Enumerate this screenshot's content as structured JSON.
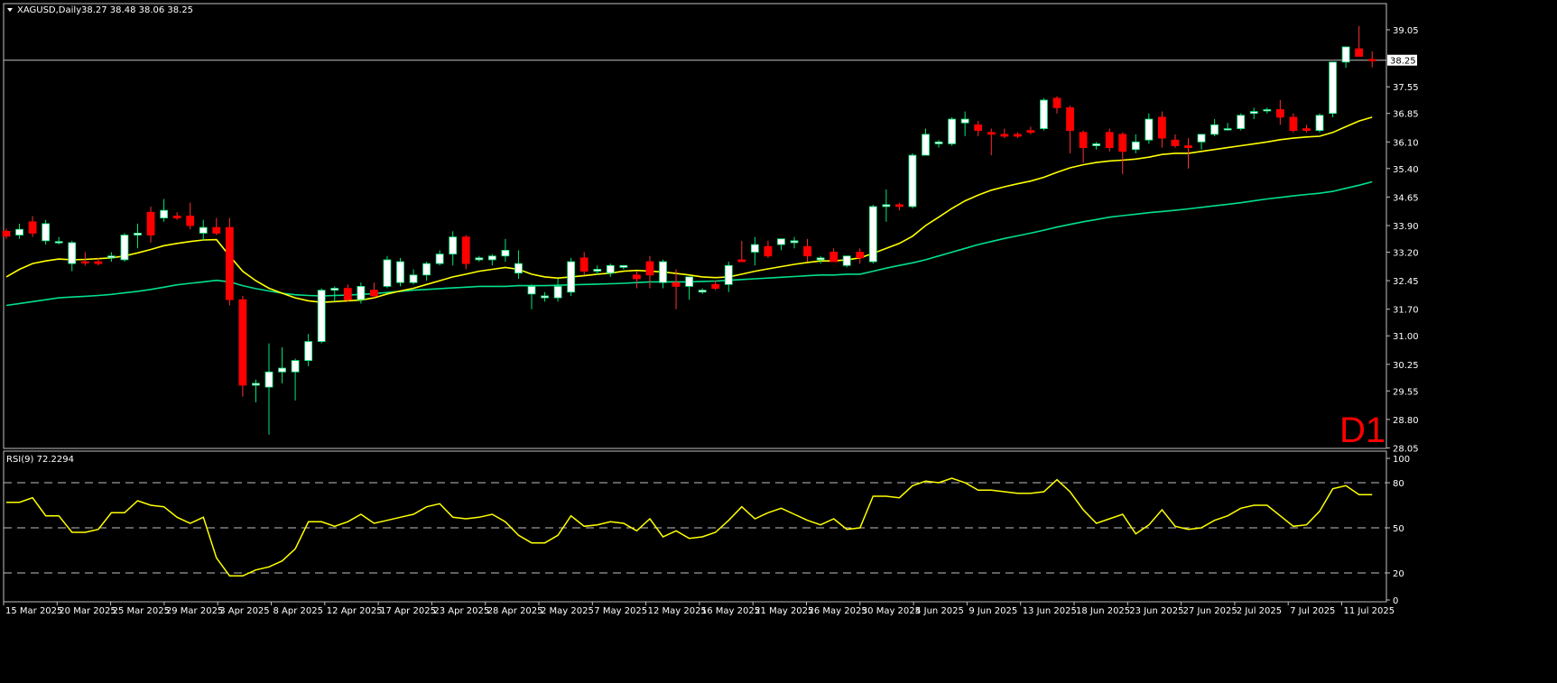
{
  "header": {
    "symbol": "XAGUSD,Daily",
    "ohlc": "38.27 38.48 38.06 38.25"
  },
  "timeframe_label": "D1",
  "rsi_header": "RSI(9) 72.2294",
  "current_price_label": "38.25",
  "colors": {
    "bull": "#ffffff",
    "bear": "#ff0000",
    "ma_fast": "#ffff00",
    "ma_slow": "#00e08c",
    "rsi": "#ffff00",
    "grid": "#c0c0c0"
  },
  "chart_data": [
    {
      "type": "candlestick",
      "symbol": "XAGUSD",
      "ylim": [
        28.0,
        39.5
      ],
      "y_ticks": [
        "39.05",
        "38.25",
        "37.55",
        "36.85",
        "36.10",
        "35.40",
        "34.65",
        "33.90",
        "33.20",
        "32.45",
        "31.70",
        "31.00",
        "30.25",
        "29.55",
        "28.80",
        "28.05"
      ],
      "x_tick_labels": [
        "15 Mar 2025",
        "20 Mar 2025",
        "25 Mar 2025",
        "29 Mar 2025",
        "3 Apr 2025",
        "8 Apr 2025",
        "12 Apr 2025",
        "17 Apr 2025",
        "23 Apr 2025",
        "28 Apr 2025",
        "2 May 2025",
        "7 May 2025",
        "12 May 2025",
        "16 May 2025",
        "21 May 2025",
        "26 May 2025",
        "30 May 2025",
        "4 Jun 2025",
        "9 Jun 2025",
        "13 Jun 2025",
        "18 Jun 2025",
        "23 Jun 2025",
        "27 Jun 2025",
        "2 Jul 2025",
        "7 Jul 2025",
        "11 Jul 2025"
      ],
      "candles": [
        [
          33.75,
          33.82,
          33.55,
          33.62
        ],
        [
          33.65,
          33.95,
          33.55,
          33.8
        ],
        [
          34.0,
          34.15,
          33.6,
          33.7
        ],
        [
          33.5,
          34.05,
          33.4,
          33.95
        ],
        [
          33.45,
          33.6,
          33.4,
          33.48
        ],
        [
          32.9,
          33.5,
          32.7,
          33.45
        ],
        [
          32.95,
          33.2,
          32.85,
          32.92
        ],
        [
          32.95,
          33.05,
          32.85,
          32.9
        ],
        [
          33.05,
          33.2,
          32.95,
          33.1
        ],
        [
          33.0,
          33.7,
          32.95,
          33.65
        ],
        [
          33.65,
          33.95,
          33.3,
          33.7
        ],
        [
          34.25,
          34.4,
          33.45,
          33.65
        ],
        [
          34.1,
          34.6,
          34.0,
          34.3
        ],
        [
          34.15,
          34.25,
          34.05,
          34.1
        ],
        [
          34.15,
          34.5,
          33.8,
          33.9
        ],
        [
          33.7,
          34.05,
          33.5,
          33.85
        ],
        [
          33.85,
          34.1,
          33.65,
          33.7
        ],
        [
          33.85,
          34.1,
          31.8,
          31.95
        ],
        [
          31.95,
          32.05,
          29.4,
          29.7
        ],
        [
          29.7,
          29.85,
          29.25,
          29.75
        ],
        [
          29.65,
          30.8,
          28.4,
          30.05
        ],
        [
          30.05,
          30.7,
          29.75,
          30.15
        ],
        [
          30.05,
          30.4,
          29.3,
          30.35
        ],
        [
          30.35,
          31.05,
          30.2,
          30.85
        ],
        [
          30.85,
          32.25,
          30.8,
          32.2
        ],
        [
          32.2,
          32.3,
          31.9,
          32.25
        ],
        [
          32.25,
          32.35,
          31.9,
          31.95
        ],
        [
          31.95,
          32.4,
          31.85,
          32.3
        ],
        [
          32.2,
          32.4,
          32.0,
          32.05
        ],
        [
          32.3,
          33.1,
          32.25,
          33.0
        ],
        [
          32.4,
          33.05,
          32.3,
          32.95
        ],
        [
          32.4,
          32.75,
          32.35,
          32.6
        ],
        [
          32.6,
          32.95,
          32.45,
          32.9
        ],
        [
          32.9,
          33.25,
          32.85,
          33.15
        ],
        [
          33.15,
          33.75,
          32.85,
          33.6
        ],
        [
          33.6,
          33.65,
          32.75,
          32.9
        ],
        [
          33.0,
          33.1,
          32.95,
          33.05
        ],
        [
          33.0,
          33.15,
          32.85,
          33.1
        ],
        [
          33.1,
          33.55,
          32.95,
          33.25
        ],
        [
          32.65,
          33.25,
          32.5,
          32.9
        ],
        [
          32.1,
          32.35,
          31.7,
          32.3
        ],
        [
          32.0,
          32.15,
          31.9,
          32.05
        ],
        [
          32.0,
          32.5,
          31.9,
          32.3
        ],
        [
          32.15,
          33.05,
          32.05,
          32.95
        ],
        [
          33.05,
          33.2,
          32.6,
          32.7
        ],
        [
          32.7,
          32.85,
          32.6,
          32.75
        ],
        [
          32.65,
          32.9,
          32.55,
          32.85
        ],
        [
          32.8,
          32.85,
          32.75,
          32.85
        ],
        [
          32.6,
          32.7,
          32.25,
          32.5
        ],
        [
          32.95,
          33.1,
          32.25,
          32.6
        ],
        [
          32.4,
          33.0,
          32.25,
          32.95
        ],
        [
          32.4,
          32.75,
          31.7,
          32.3
        ],
        [
          32.3,
          32.55,
          31.95,
          32.55
        ],
        [
          32.15,
          32.25,
          32.1,
          32.2
        ],
        [
          32.35,
          32.45,
          32.2,
          32.25
        ],
        [
          32.35,
          32.95,
          32.15,
          32.85
        ],
        [
          33.0,
          33.5,
          32.95,
          32.95
        ],
        [
          33.2,
          33.6,
          32.85,
          33.4
        ],
        [
          33.35,
          33.5,
          33.05,
          33.1
        ],
        [
          33.4,
          33.55,
          33.25,
          33.55
        ],
        [
          33.45,
          33.6,
          33.3,
          33.5
        ],
        [
          33.35,
          33.55,
          32.95,
          33.1
        ],
        [
          33.0,
          33.1,
          32.9,
          33.05
        ],
        [
          33.2,
          33.3,
          32.95,
          32.95
        ],
        [
          32.85,
          33.05,
          32.8,
          33.1
        ],
        [
          33.2,
          33.3,
          32.9,
          33.05
        ],
        [
          32.95,
          34.45,
          32.9,
          34.4
        ],
        [
          34.4,
          34.85,
          34.0,
          34.45
        ],
        [
          34.45,
          34.5,
          34.3,
          34.4
        ],
        [
          34.4,
          35.8,
          34.35,
          35.75
        ],
        [
          35.75,
          36.45,
          35.75,
          36.3
        ],
        [
          36.05,
          36.15,
          35.95,
          36.1
        ],
        [
          36.05,
          36.75,
          36.0,
          36.7
        ],
        [
          36.6,
          36.9,
          36.25,
          36.7
        ],
        [
          36.55,
          36.65,
          36.25,
          36.4
        ],
        [
          36.35,
          36.45,
          35.75,
          36.3
        ],
        [
          36.3,
          36.45,
          36.2,
          36.25
        ],
        [
          36.3,
          36.35,
          36.2,
          36.25
        ],
        [
          36.4,
          36.5,
          36.3,
          36.35
        ],
        [
          36.45,
          37.25,
          36.4,
          37.2
        ],
        [
          37.25,
          37.3,
          36.85,
          37.0
        ],
        [
          37.0,
          37.05,
          35.8,
          36.4
        ],
        [
          36.35,
          36.4,
          35.55,
          35.95
        ],
        [
          36.0,
          36.1,
          35.9,
          36.05
        ],
        [
          36.35,
          36.45,
          35.85,
          35.95
        ],
        [
          36.3,
          36.35,
          35.25,
          35.85
        ],
        [
          35.9,
          36.3,
          35.8,
          36.1
        ],
        [
          36.15,
          36.85,
          36.05,
          36.7
        ],
        [
          36.75,
          36.9,
          35.95,
          36.2
        ],
        [
          36.15,
          36.3,
          35.95,
          36.0
        ],
        [
          36.0,
          36.2,
          35.4,
          35.95
        ],
        [
          36.1,
          36.3,
          35.9,
          36.3
        ],
        [
          36.3,
          36.7,
          36.25,
          36.55
        ],
        [
          36.45,
          36.6,
          36.4,
          36.45
        ],
        [
          36.45,
          36.85,
          36.4,
          36.8
        ],
        [
          36.85,
          37.0,
          36.7,
          36.9
        ],
        [
          36.95,
          37.0,
          36.85,
          36.95
        ],
        [
          36.95,
          37.2,
          36.55,
          36.75
        ],
        [
          36.75,
          36.85,
          36.35,
          36.4
        ],
        [
          36.45,
          36.55,
          36.35,
          36.4
        ],
        [
          36.4,
          36.85,
          36.35,
          36.8
        ],
        [
          36.85,
          38.2,
          36.75,
          38.2
        ],
        [
          38.2,
          38.6,
          38.05,
          38.6
        ],
        [
          38.55,
          39.15,
          38.35,
          38.35
        ],
        [
          38.27,
          38.48,
          38.06,
          38.25
        ]
      ],
      "ma_fast": [
        32.55,
        32.75,
        32.9,
        32.97,
        33.02,
        33.0,
        33.01,
        33.03,
        33.05,
        33.1,
        33.18,
        33.27,
        33.37,
        33.43,
        33.48,
        33.52,
        33.53,
        33.1,
        32.7,
        32.45,
        32.25,
        32.12,
        32.0,
        31.92,
        31.88,
        31.9,
        31.92,
        31.94,
        32.0,
        32.1,
        32.18,
        32.25,
        32.35,
        32.45,
        32.55,
        32.62,
        32.7,
        32.75,
        32.8,
        32.75,
        32.62,
        32.55,
        32.52,
        32.55,
        32.58,
        32.62,
        32.65,
        32.7,
        32.72,
        32.7,
        32.68,
        32.64,
        32.6,
        32.55,
        32.53,
        32.55,
        32.62,
        32.7,
        32.76,
        32.82,
        32.88,
        32.93,
        32.97,
        32.97,
        33.0,
        33.05,
        33.17,
        33.3,
        33.43,
        33.62,
        33.9,
        34.12,
        34.35,
        34.55,
        34.7,
        34.83,
        34.92,
        35.0,
        35.07,
        35.17,
        35.3,
        35.42,
        35.5,
        35.56,
        35.6,
        35.62,
        35.65,
        35.7,
        35.77,
        35.8,
        35.8,
        35.85,
        35.9,
        35.95,
        36.0,
        36.05,
        36.1,
        36.16,
        36.2,
        36.23,
        36.25,
        36.35,
        36.5,
        36.65,
        36.75
      ],
      "ma_slow": [
        31.8,
        31.85,
        31.9,
        31.95,
        32.0,
        32.02,
        32.04,
        32.06,
        32.09,
        32.13,
        32.17,
        32.22,
        32.28,
        32.34,
        32.38,
        32.42,
        32.46,
        32.42,
        32.32,
        32.24,
        32.18,
        32.12,
        32.08,
        32.06,
        32.05,
        32.06,
        32.07,
        32.09,
        32.11,
        32.14,
        32.17,
        32.2,
        32.22,
        32.24,
        32.26,
        32.28,
        32.3,
        32.3,
        32.3,
        32.32,
        32.32,
        32.32,
        32.33,
        32.34,
        32.35,
        32.36,
        32.37,
        32.38,
        32.4,
        32.42,
        32.42,
        32.42,
        32.42,
        32.43,
        32.44,
        32.46,
        32.48,
        32.5,
        32.52,
        32.54,
        32.56,
        32.58,
        32.6,
        32.6,
        32.62,
        32.62,
        32.7,
        32.78,
        32.85,
        32.92,
        33.0,
        33.1,
        33.2,
        33.3,
        33.4,
        33.48,
        33.56,
        33.63,
        33.7,
        33.78,
        33.86,
        33.93,
        34.0,
        34.06,
        34.12,
        34.16,
        34.2,
        34.24,
        34.27,
        34.3,
        34.34,
        34.38,
        34.42,
        34.46,
        34.5,
        34.55,
        34.6,
        34.64,
        34.68,
        34.72,
        34.75,
        34.8,
        34.88,
        34.96,
        35.05
      ]
    },
    {
      "type": "line",
      "title": "RSI(9) 72.2294",
      "ylim": [
        0,
        100
      ],
      "y_ticks": [
        100,
        80,
        50,
        20,
        0
      ],
      "levels": [
        80,
        50,
        20
      ],
      "values": [
        67,
        67,
        70,
        58,
        58,
        47,
        47,
        49,
        60,
        60,
        68,
        65,
        64,
        57,
        53,
        57,
        30,
        18,
        18,
        22,
        24,
        28,
        36,
        54,
        54,
        51,
        54,
        59,
        53,
        55,
        57,
        59,
        64,
        66,
        57,
        56,
        57,
        59,
        54,
        45,
        40,
        40,
        45,
        58,
        51,
        52,
        54,
        53,
        48,
        56,
        44,
        48,
        43,
        44,
        47,
        55,
        64,
        56,
        60,
        63,
        59,
        55,
        52,
        56,
        49,
        50,
        71,
        71,
        70,
        78,
        81,
        80,
        83,
        80,
        75,
        75,
        74,
        73,
        73,
        74,
        82,
        74,
        62,
        53,
        56,
        59,
        46,
        52,
        62,
        51,
        49,
        50,
        55,
        58,
        63,
        65,
        65,
        58,
        51,
        52,
        61,
        76,
        78,
        72,
        72
      ]
    }
  ]
}
